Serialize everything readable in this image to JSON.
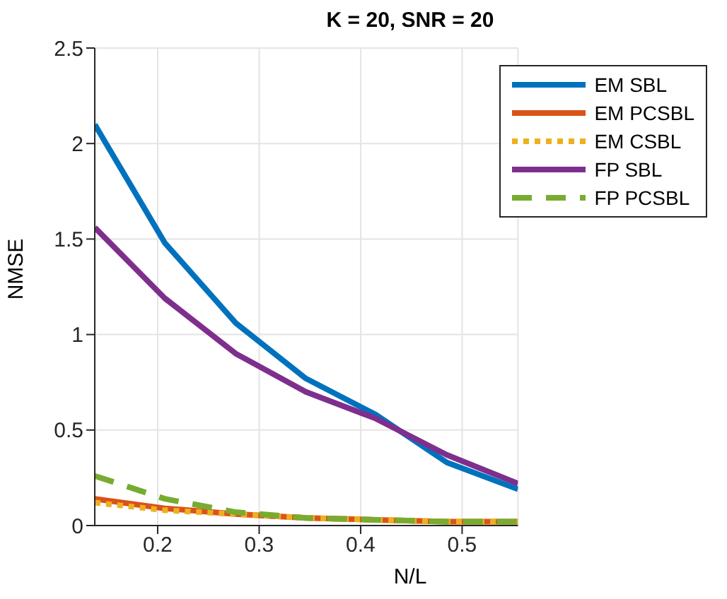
{
  "chart_data": {
    "type": "line",
    "title": "K = 20, SNR = 20",
    "xlabel": "N/L",
    "ylabel": "NMSE",
    "x": [
      0.138,
      0.207,
      0.277,
      0.346,
      0.415,
      0.485,
      0.555
    ],
    "xlim": [
      0.138,
      0.555
    ],
    "xticks": [
      0.2,
      0.3,
      0.4,
      0.5
    ],
    "ylim": [
      0,
      2.5
    ],
    "yticks": [
      0,
      0.5,
      1,
      1.5,
      2,
      2.5
    ],
    "grid": true,
    "legend": "top right",
    "line_style": "solid",
    "marker": "none",
    "series": [
      {
        "name": "EM SBL",
        "color": "#0072bd",
        "values": [
          2.1,
          1.48,
          1.06,
          0.77,
          0.58,
          0.33,
          0.19
        ]
      },
      {
        "name": "EM PCSBL",
        "color": "#d95319",
        "values": [
          0.14,
          0.09,
          0.06,
          0.04,
          0.03,
          0.02,
          0.02
        ]
      },
      {
        "name": "EM CSBL",
        "color": "#edb120",
        "line_style": "dotted",
        "values": [
          0.12,
          0.08,
          0.06,
          0.04,
          0.03,
          0.02,
          0.02
        ]
      },
      {
        "name": "FP SBL",
        "color": "#7e2f8e",
        "values": [
          1.56,
          1.19,
          0.9,
          0.7,
          0.56,
          0.37,
          0.22
        ]
      },
      {
        "name": "FP PCSBL",
        "color": "#77ac30",
        "line_style": "dashed",
        "values": [
          0.26,
          0.14,
          0.07,
          0.04,
          0.03,
          0.02,
          0.02
        ]
      }
    ]
  }
}
